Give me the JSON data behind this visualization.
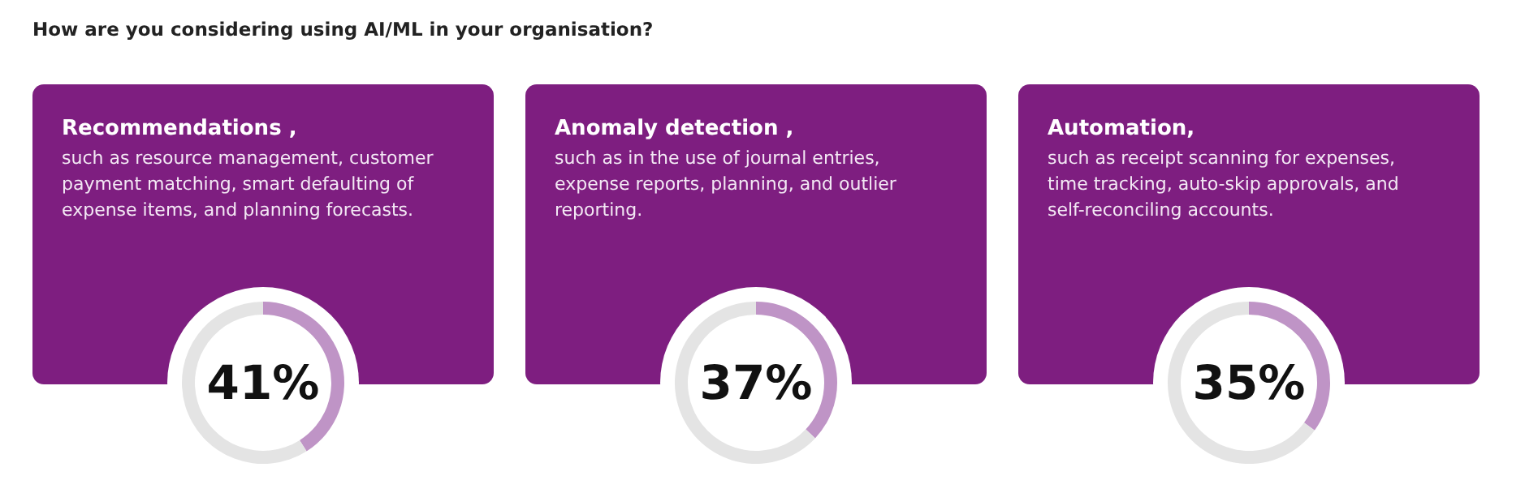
{
  "chart_data": [
    {
      "type": "other",
      "title": "How are you considering using AI/ML in your organisation?"
    },
    {
      "type": "donut",
      "title": "Recommendations ,",
      "subtitle": "such as resource management, customer payment matching, smart defaulting of expense items, and planning forecasts.",
      "categories": [
        null,
        null
      ],
      "values": [
        41,
        59
      ],
      "colors": [
        "#bf94c6",
        "#e4e4e4"
      ],
      "value_labels": [
        "41%",
        null
      ]
    },
    {
      "type": "donut",
      "title": "Anomaly detection ,",
      "subtitle": "such as in the use of journal entries, expense reports, planning, and outlier reporting.",
      "categories": [
        null,
        null
      ],
      "values": [
        37,
        63
      ],
      "colors": [
        "#bf94c6",
        "#e4e4e4"
      ],
      "value_labels": [
        "37%",
        null
      ]
    },
    {
      "type": "donut",
      "title": "Automation,",
      "subtitle": "such as receipt scanning for expenses, time tracking, auto-skip approvals, and self-reconciling accounts.",
      "categories": [
        null,
        null
      ],
      "values": [
        35,
        65
      ],
      "colors": [
        "#bf94c6",
        "#e4e4e4"
      ],
      "value_labels": [
        "35%",
        null
      ]
    }
  ]
}
